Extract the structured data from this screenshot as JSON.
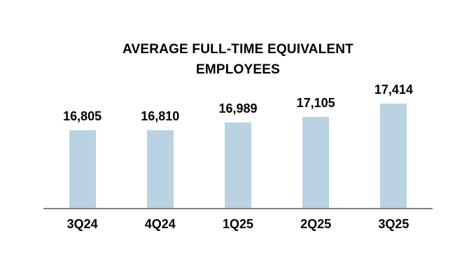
{
  "chart_data": {
    "type": "bar",
    "title": "AVERAGE FULL-TIME EQUIVALENT EMPLOYEES",
    "categories": [
      "3Q24",
      "4Q24",
      "1Q25",
      "2Q25",
      "3Q25"
    ],
    "values": [
      16805,
      16810,
      16989,
      17105,
      17414
    ],
    "value_labels": [
      "16,805",
      "16,810",
      "16,989",
      "17,105",
      "17,414"
    ],
    "xlabel": "",
    "ylabel": "",
    "ylim": [
      15000,
      17600
    ],
    "grid": false,
    "legend": false,
    "bar_color": "#b9d3e2",
    "axis_line_color": "#808080",
    "text_color": "#000000",
    "background_color": "#ffffff"
  }
}
